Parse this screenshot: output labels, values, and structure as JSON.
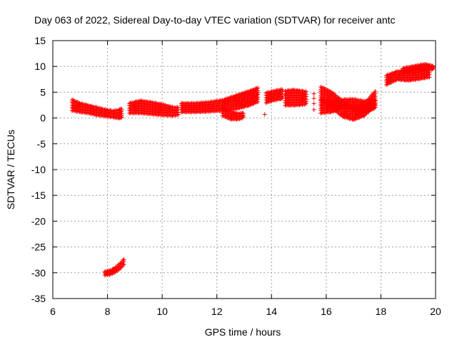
{
  "chart_data": {
    "type": "scatter",
    "title": "Day 063 of 2022, Sidereal Day-to-day VTEC variation (SDTVAR) for receiver antc",
    "xlabel": "GPS time / hours",
    "ylabel": "SDTVAR / TECUs",
    "xlim": [
      6,
      20
    ],
    "ylim": [
      -35,
      15
    ],
    "xticks": [
      6,
      8,
      10,
      12,
      14,
      16,
      18,
      20
    ],
    "yticks": [
      -35,
      -30,
      -25,
      -20,
      -15,
      -10,
      -5,
      0,
      5,
      10,
      15
    ],
    "grid": true,
    "marker": "plus",
    "series_color": "#ff0000",
    "series": [
      {
        "name": "SDTVAR",
        "segments": [
          {
            "x": [
              6.7,
              7.0,
              7.3,
              7.6,
              7.9,
              8.2,
              8.4,
              8.55
            ],
            "y_low": [
              1.5,
              1.2,
              1.0,
              0.6,
              0.4,
              0.2,
              0.0,
              0.1
            ],
            "y_high": [
              3.5,
              2.8,
              2.4,
              2.0,
              1.6,
              1.3,
              1.5,
              1.8
            ]
          },
          {
            "x": [
              7.9,
              8.1,
              8.3,
              8.5,
              8.6
            ],
            "y_low": [
              -30.4,
              -30.3,
              -29.8,
              -29.0,
              -28.3
            ],
            "y_high": [
              -29.8,
              -29.6,
              -29.0,
              -28.0,
              -27.4
            ]
          },
          {
            "x": [
              8.8,
              9.2,
              9.6,
              10.0,
              10.4,
              10.6
            ],
            "y_low": [
              1.0,
              1.0,
              0.8,
              0.6,
              0.5,
              0.7
            ],
            "y_high": [
              2.8,
              3.3,
              3.0,
              2.6,
              2.0,
              2.0
            ]
          },
          {
            "x": [
              10.7,
              11.2,
              11.7,
              12.2,
              12.7,
              13.2,
              13.5
            ],
            "y_low": [
              1.2,
              1.2,
              1.3,
              1.5,
              1.8,
              2.5,
              3.2
            ],
            "y_high": [
              2.8,
              2.8,
              3.0,
              3.4,
              4.3,
              5.2,
              5.8
            ]
          },
          {
            "x": [
              12.2,
              12.5,
              12.8,
              13.0
            ],
            "y_low": [
              0.5,
              -0.2,
              -0.2,
              0.2
            ],
            "y_high": [
              2.0,
              1.2,
              0.8,
              1.0
            ]
          },
          {
            "x": [
              13.8,
              14.1,
              14.4
            ],
            "y_low": [
              3.0,
              3.5,
              3.8
            ],
            "y_high": [
              4.8,
              5.2,
              5.5
            ]
          },
          {
            "x": [
              14.5,
              14.8,
              15.1,
              15.3
            ],
            "y_low": [
              2.5,
              2.5,
              2.6,
              2.8
            ],
            "y_high": [
              5.2,
              5.4,
              5.2,
              5.0
            ]
          },
          {
            "x": [
              15.8,
              16.2,
              16.6,
              17.0,
              17.4,
              17.8
            ],
            "y_low": [
              3.5,
              2.0,
              0.3,
              -0.3,
              0.5,
              2.5
            ],
            "y_high": [
              6.0,
              5.0,
              3.2,
              2.0,
              2.8,
              5.2
            ]
          },
          {
            "x": [
              15.8,
              16.2,
              16.6,
              17.0,
              17.4,
              17.8
            ],
            "y_low": [
              1.0,
              1.2,
              2.0,
              1.8,
              1.0,
              2.0
            ],
            "y_high": [
              3.5,
              3.0,
              3.5,
              3.6,
              3.2,
              3.4
            ]
          },
          {
            "x": [
              18.2,
              18.6,
              19.0,
              19.4,
              19.8
            ],
            "y_low": [
              6.5,
              7.5,
              7.3,
              7.6,
              8.0
            ],
            "y_high": [
              8.2,
              9.0,
              9.2,
              9.8,
              10.2
            ]
          },
          {
            "x": [
              18.8,
              19.2,
              19.6,
              19.95
            ],
            "y_low": [
              8.8,
              9.2,
              9.4,
              9.5
            ],
            "y_high": [
              9.6,
              10.0,
              10.4,
              10.0
            ]
          }
        ],
        "isolated_points": [
          {
            "x": 13.75,
            "y": 0.7
          },
          {
            "x": 15.55,
            "y": 1.6
          },
          {
            "x": 15.55,
            "y": 2.8
          },
          {
            "x": 15.55,
            "y": 3.8
          },
          {
            "x": 15.55,
            "y": 4.7
          }
        ]
      }
    ]
  }
}
